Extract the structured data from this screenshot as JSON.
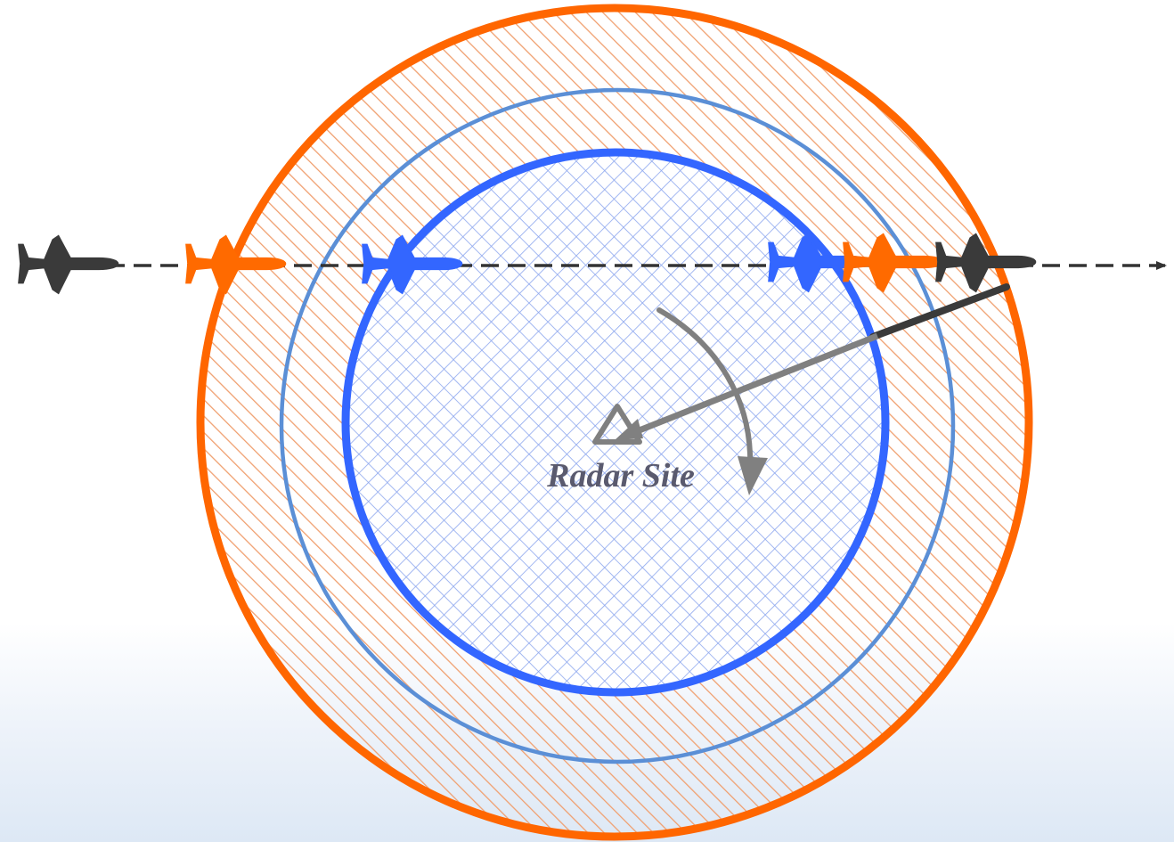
{
  "radar_site": {
    "label": "Radar Site"
  },
  "colors": {
    "outer_ring": "#ff6600",
    "middle_ring": "#5b8fd6",
    "inner_ring": "#3366ff",
    "aircraft_dark": "#3a3a3a",
    "aircraft_orange": "#ff6a00",
    "aircraft_blue": "#3366ff",
    "flight_path": "#333333",
    "radar_beam": "#808080",
    "label_text": "#5a5a6e",
    "orange_hatch": "#f0a070",
    "blue_hatch": "#8ca6ee"
  },
  "icons": {
    "aircraft": "airplane-icon",
    "radar_site": "triangle-icon",
    "rotation": "curved-arrow-icon"
  }
}
